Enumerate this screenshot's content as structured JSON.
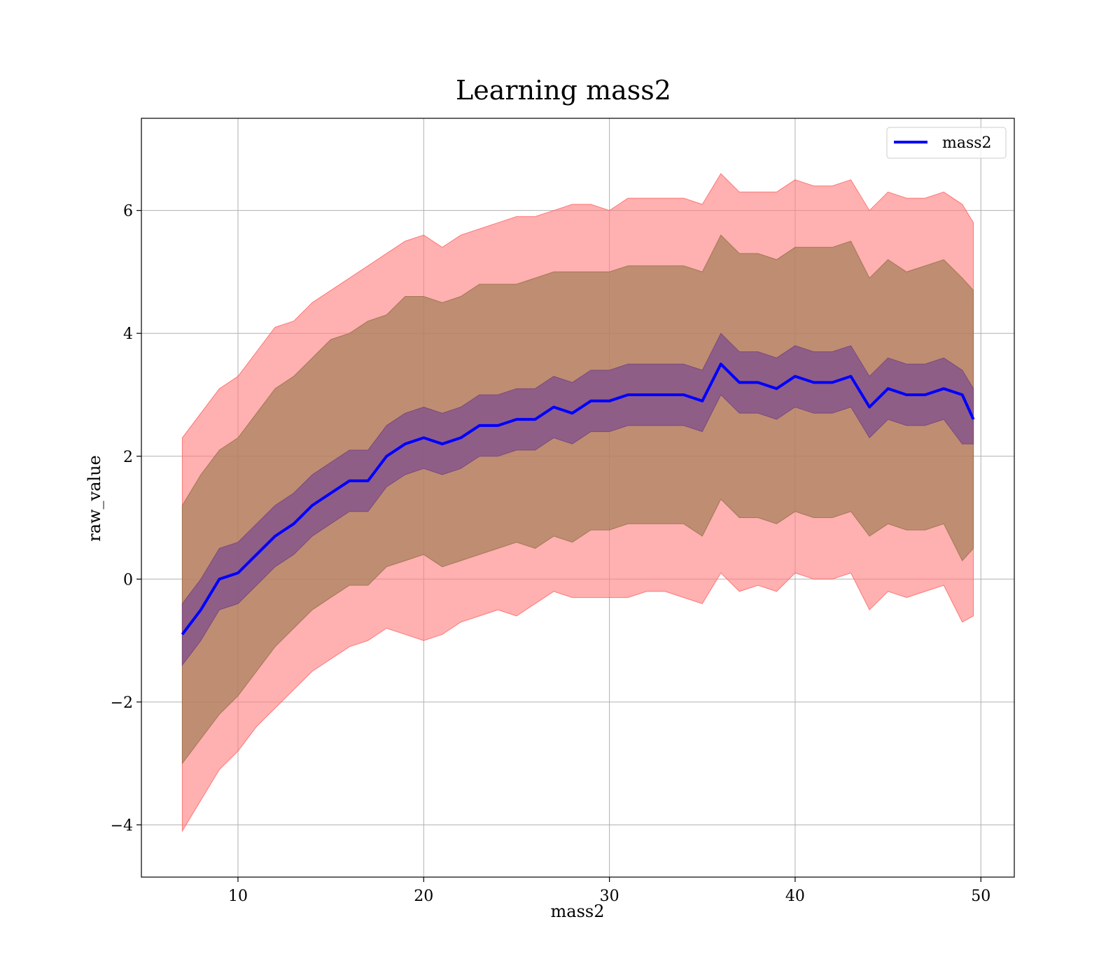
{
  "chart_data": {
    "type": "line",
    "title": "Learning mass2",
    "xlabel": "mass2",
    "ylabel": "raw_value",
    "xlim": [
      4.8,
      51.8
    ],
    "ylim": [
      -4.85,
      7.5
    ],
    "xticks": [
      10,
      20,
      30,
      40,
      50
    ],
    "yticks": [
      -4,
      -2,
      0,
      2,
      4,
      6
    ],
    "xtick_labels": [
      "10",
      "20",
      "30",
      "40",
      "50"
    ],
    "ytick_labels": [
      "−4",
      "−2",
      "0",
      "2",
      "4",
      "6"
    ],
    "grid": true,
    "legend_placement": "top-right",
    "colors": {
      "line": "#0000ff",
      "outer_band": "#ff7f7f",
      "middle_band": "#a6805a",
      "inner_band": "#7f4f8f",
      "grid": "#b0b0b0"
    },
    "x": [
      7,
      8,
      9,
      10,
      11,
      12,
      13,
      14,
      15,
      16,
      17,
      18,
      19,
      20,
      21,
      22,
      23,
      24,
      25,
      26,
      27,
      28,
      29,
      30,
      31,
      32,
      33,
      34,
      35,
      36,
      37,
      38,
      39,
      40,
      41,
      42,
      43,
      44,
      45,
      46,
      47,
      48,
      49,
      49.6
    ],
    "series": [
      {
        "name": "mass2",
        "values": [
          -0.9,
          -0.5,
          0.0,
          0.1,
          0.4,
          0.7,
          0.9,
          1.2,
          1.4,
          1.6,
          1.6,
          2.0,
          2.2,
          2.3,
          2.2,
          2.3,
          2.5,
          2.5,
          2.6,
          2.6,
          2.8,
          2.7,
          2.9,
          2.9,
          3.0,
          3.0,
          3.0,
          3.0,
          2.9,
          3.5,
          3.2,
          3.2,
          3.1,
          3.3,
          3.2,
          3.2,
          3.3,
          2.8,
          3.1,
          3.0,
          3.0,
          3.1,
          3.0,
          2.6
        ]
      }
    ],
    "bands": [
      {
        "role": "outer",
        "lower": [
          -4.1,
          -3.6,
          -3.1,
          -2.8,
          -2.4,
          -2.1,
          -1.8,
          -1.5,
          -1.3,
          -1.1,
          -1.0,
          -0.8,
          -0.9,
          -1.0,
          -0.9,
          -0.7,
          -0.6,
          -0.5,
          -0.6,
          -0.4,
          -0.2,
          -0.3,
          -0.3,
          -0.3,
          -0.3,
          -0.2,
          -0.2,
          -0.3,
          -0.4,
          0.1,
          -0.2,
          -0.1,
          -0.2,
          0.1,
          0.0,
          0.0,
          0.1,
          -0.5,
          -0.2,
          -0.3,
          -0.2,
          -0.1,
          -0.7,
          -0.6
        ],
        "upper": [
          2.3,
          2.7,
          3.1,
          3.3,
          3.7,
          4.1,
          4.2,
          4.5,
          4.7,
          4.9,
          5.1,
          5.3,
          5.5,
          5.6,
          5.4,
          5.6,
          5.7,
          5.8,
          5.9,
          5.9,
          6.0,
          6.1,
          6.1,
          6.0,
          6.2,
          6.2,
          6.2,
          6.2,
          6.1,
          6.6,
          6.3,
          6.3,
          6.3,
          6.5,
          6.4,
          6.4,
          6.5,
          6.0,
          6.3,
          6.2,
          6.2,
          6.3,
          6.1,
          5.8
        ]
      },
      {
        "role": "middle",
        "lower": [
          -3.0,
          -2.6,
          -2.2,
          -1.9,
          -1.5,
          -1.1,
          -0.8,
          -0.5,
          -0.3,
          -0.1,
          -0.1,
          0.2,
          0.3,
          0.4,
          0.2,
          0.3,
          0.4,
          0.5,
          0.6,
          0.5,
          0.7,
          0.6,
          0.8,
          0.8,
          0.9,
          0.9,
          0.9,
          0.9,
          0.7,
          1.3,
          1.0,
          1.0,
          0.9,
          1.1,
          1.0,
          1.0,
          1.1,
          0.7,
          0.9,
          0.8,
          0.8,
          0.9,
          0.3,
          0.5
        ],
        "upper": [
          1.2,
          1.7,
          2.1,
          2.3,
          2.7,
          3.1,
          3.3,
          3.6,
          3.9,
          4.0,
          4.2,
          4.3,
          4.6,
          4.6,
          4.5,
          4.6,
          4.8,
          4.8,
          4.8,
          4.9,
          5.0,
          5.0,
          5.0,
          5.0,
          5.1,
          5.1,
          5.1,
          5.1,
          5.0,
          5.6,
          5.3,
          5.3,
          5.2,
          5.4,
          5.4,
          5.4,
          5.5,
          4.9,
          5.2,
          5.0,
          5.1,
          5.2,
          4.9,
          4.7
        ]
      },
      {
        "role": "inner",
        "lower": [
          -1.4,
          -1.0,
          -0.5,
          -0.4,
          -0.1,
          0.2,
          0.4,
          0.7,
          0.9,
          1.1,
          1.1,
          1.5,
          1.7,
          1.8,
          1.7,
          1.8,
          2.0,
          2.0,
          2.1,
          2.1,
          2.3,
          2.2,
          2.4,
          2.4,
          2.5,
          2.5,
          2.5,
          2.5,
          2.4,
          3.0,
          2.7,
          2.7,
          2.6,
          2.8,
          2.7,
          2.7,
          2.8,
          2.3,
          2.6,
          2.5,
          2.5,
          2.6,
          2.2,
          2.2
        ],
        "upper": [
          -0.4,
          0.0,
          0.5,
          0.6,
          0.9,
          1.2,
          1.4,
          1.7,
          1.9,
          2.1,
          2.1,
          2.5,
          2.7,
          2.8,
          2.7,
          2.8,
          3.0,
          3.0,
          3.1,
          3.1,
          3.3,
          3.2,
          3.4,
          3.4,
          3.5,
          3.5,
          3.5,
          3.5,
          3.4,
          4.0,
          3.7,
          3.7,
          3.6,
          3.8,
          3.7,
          3.7,
          3.8,
          3.3,
          3.6,
          3.5,
          3.5,
          3.6,
          3.4,
          3.1
        ]
      }
    ]
  }
}
